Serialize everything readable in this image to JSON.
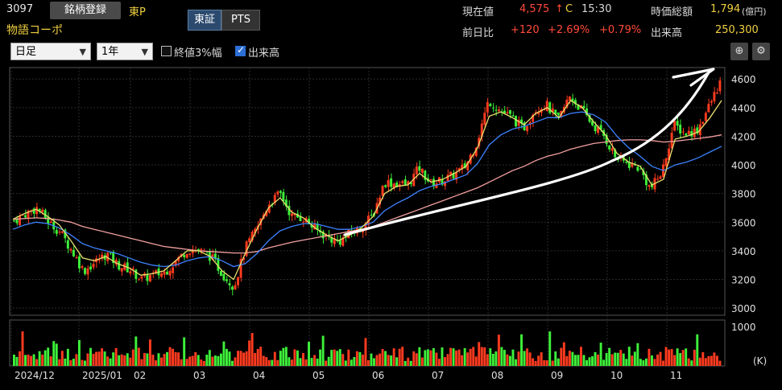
{
  "header": {
    "code": "3097",
    "register_button": "銘柄登録",
    "market": "東P",
    "company": "物語コーポ",
    "tabs": [
      "東証",
      "PTS"
    ],
    "current_price_label": "現在値",
    "current_price": "4,575",
    "arrow": "↑",
    "price_flag": "C",
    "time": "15:30",
    "prev_label": "前日比",
    "change_abs": "+120",
    "change_pct": "+2.69%",
    "change_pct2": "+0.79%",
    "mcap_label": "時価総額",
    "mcap_value": "1,794",
    "mcap_unit": "(億円)",
    "volume_label": "出来高",
    "volume_value": "250,300"
  },
  "toolbar": {
    "period_select": "日足",
    "range_select": "1年",
    "close3_label": "終値3%幅",
    "close3_checked": false,
    "volume_toggle_label": "出来高",
    "volume_toggle_checked": true,
    "zoom_icon": "zoom-icon",
    "settings_icon": "gear-icon"
  },
  "chart_data": {
    "type": "candlestick",
    "price_axis_ticks": [
      "4600",
      "4400",
      "4200",
      "4000",
      "3800",
      "3600",
      "3400",
      "3200",
      "3000"
    ],
    "price_range": [
      2950,
      4680
    ],
    "volume_axis_labels": [
      "1000",
      "(K)"
    ],
    "x_tick_labels": [
      "2024/12",
      "2025/01",
      "02",
      "03",
      "04",
      "05",
      "06",
      "07",
      "08",
      "09",
      "10",
      "11"
    ],
    "colors": {
      "up": "#ff3b1f",
      "down": "#3ef03a",
      "ma_short": "#e8e070",
      "ma_mid": "#3c82ff",
      "ma_long": "#f4a0a0",
      "grid": "#2b2b2b"
    },
    "close_path": [
      3610,
      3660,
      3700,
      3600,
      3530,
      3400,
      3260,
      3320,
      3380,
      3300,
      3270,
      3200,
      3230,
      3250,
      3330,
      3410,
      3400,
      3360,
      3240,
      3150,
      3420,
      3560,
      3730,
      3800,
      3640,
      3630,
      3550,
      3500,
      3460,
      3520,
      3560,
      3650,
      3880,
      3870,
      3860,
      3980,
      3870,
      3890,
      3930,
      3990,
      4160,
      4450,
      4380,
      4330,
      4250,
      4390,
      4420,
      4310,
      4480,
      4390,
      4280,
      4200,
      4050,
      4010,
      3980,
      3830,
      3950,
      4280,
      4220,
      4240,
      4400,
      4575
    ],
    "ma_short": [
      3620,
      3660,
      3690,
      3640,
      3580,
      3470,
      3350,
      3330,
      3360,
      3310,
      3280,
      3230,
      3240,
      3260,
      3330,
      3400,
      3400,
      3360,
      3260,
      3200,
      3380,
      3550,
      3700,
      3770,
      3670,
      3630,
      3560,
      3510,
      3470,
      3510,
      3560,
      3640,
      3800,
      3850,
      3860,
      3940,
      3880,
      3900,
      3940,
      3990,
      4120,
      4340,
      4370,
      4330,
      4280,
      4360,
      4400,
      4330,
      4450,
      4400,
      4300,
      4210,
      4080,
      4020,
      3990,
      3860,
      3900,
      4180,
      4200,
      4230,
      4330,
      4450
    ],
    "ma_mid": [
      3550,
      3580,
      3600,
      3590,
      3560,
      3510,
      3450,
      3420,
      3400,
      3380,
      3350,
      3320,
      3300,
      3290,
      3300,
      3330,
      3350,
      3360,
      3330,
      3290,
      3310,
      3380,
      3470,
      3540,
      3570,
      3590,
      3590,
      3570,
      3550,
      3550,
      3570,
      3600,
      3680,
      3730,
      3770,
      3820,
      3850,
      3870,
      3900,
      3930,
      4010,
      4140,
      4210,
      4250,
      4270,
      4300,
      4330,
      4330,
      4360,
      4370,
      4350,
      4300,
      4200,
      4120,
      4060,
      3990,
      3960,
      4000,
      4020,
      4050,
      4090,
      4130
    ],
    "ma_long": [
      3620,
      3625,
      3630,
      3625,
      3615,
      3600,
      3570,
      3550,
      3530,
      3510,
      3490,
      3470,
      3450,
      3430,
      3420,
      3410,
      3400,
      3395,
      3390,
      3385,
      3385,
      3395,
      3420,
      3440,
      3460,
      3475,
      3490,
      3505,
      3520,
      3535,
      3550,
      3570,
      3600,
      3630,
      3660,
      3690,
      3720,
      3750,
      3780,
      3810,
      3840,
      3880,
      3920,
      3960,
      3990,
      4030,
      4060,
      4080,
      4110,
      4130,
      4150,
      4160,
      4170,
      4175,
      4175,
      4170,
      4160,
      4165,
      4175,
      4185,
      4195,
      4210
    ],
    "annotation": "hand-drawn white upward curved arrow from early June to late November"
  }
}
